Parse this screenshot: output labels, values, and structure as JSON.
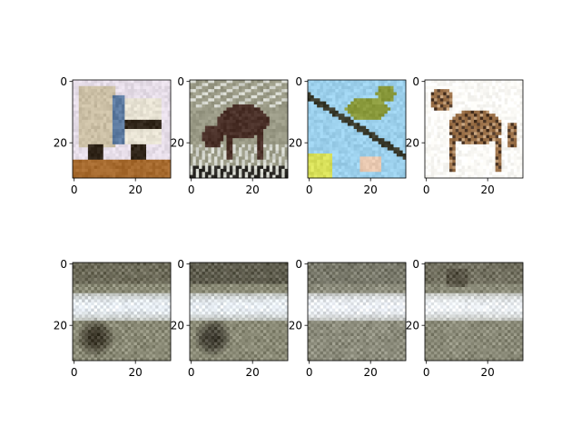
{
  "figure": {
    "background": "#ffffff",
    "rows": 2,
    "cols": 4
  },
  "chart_data": [
    {
      "type": "heatmap",
      "row": 0,
      "col": 0,
      "content": "truck (original image)",
      "xlim": [
        0,
        31
      ],
      "ylim": [
        31,
        0
      ],
      "xticks": [
        "0",
        "20"
      ],
      "yticks": [
        "0",
        "20"
      ],
      "palette": {
        "sky": "#e6dde8",
        "truck": "#cbbfa5",
        "cab": "#e8e3d4",
        "dark": "#2f2418",
        "ground": "#a66a2e",
        "blue": "#5c7aa0"
      }
    },
    {
      "type": "heatmap",
      "row": 0,
      "col": 1,
      "content": "deer (original image)",
      "xlim": [
        0,
        31
      ],
      "ylim": [
        31,
        0
      ],
      "xticks": [
        "0",
        "20"
      ],
      "yticks": [
        "0",
        "20"
      ],
      "palette": {
        "rock": "#9a9a86",
        "light": "#d6d8d0",
        "deer": "#4a3028",
        "dark": "#2a2824"
      }
    },
    {
      "type": "heatmap",
      "row": 0,
      "col": 2,
      "content": "bird (original image)",
      "xlim": [
        0,
        31
      ],
      "ylim": [
        31,
        0
      ],
      "xticks": [
        "0",
        "20"
      ],
      "yticks": [
        "0",
        "20"
      ],
      "palette": {
        "sky": "#9cd0ec",
        "bird": "#8a9a3c",
        "branch": "#3a3a2c",
        "leaf": "#d8e05a",
        "flower": "#e8c8b0"
      }
    },
    {
      "type": "heatmap",
      "row": 0,
      "col": 3,
      "content": "cat (original image)",
      "xlim": [
        0,
        31
      ],
      "ylim": [
        31,
        0
      ],
      "xticks": [
        "0",
        "20"
      ],
      "yticks": [
        "0",
        "20"
      ],
      "palette": {
        "bg": "#fbfaf6",
        "fur": "#9a7048",
        "dark": "#4a3424",
        "light": "#c4a07a"
      }
    },
    {
      "type": "heatmap",
      "row": 1,
      "col": 0,
      "content": "reconstruction",
      "xlim": [
        0,
        31
      ],
      "ylim": [
        31,
        0
      ],
      "xticks": [
        "0",
        "20"
      ],
      "yticks": [
        "0",
        "20"
      ],
      "palette": {
        "base": "#8a8a76",
        "bright": "#e8eef4",
        "dark": "#2a2418"
      }
    },
    {
      "type": "heatmap",
      "row": 1,
      "col": 1,
      "content": "reconstruction",
      "xlim": [
        0,
        31
      ],
      "ylim": [
        31,
        0
      ],
      "xticks": [
        "0",
        "20"
      ],
      "yticks": [
        "0",
        "20"
      ],
      "palette": {
        "base": "#8a8a76",
        "bright": "#e8eef4",
        "dark": "#2c2820"
      }
    },
    {
      "type": "heatmap",
      "row": 1,
      "col": 2,
      "content": "reconstruction",
      "xlim": [
        0,
        31
      ],
      "ylim": [
        31,
        0
      ],
      "xticks": [
        "0",
        "20"
      ],
      "yticks": [
        "0",
        "20"
      ],
      "palette": {
        "base": "#8c8c7c",
        "bright": "#eef2f8",
        "dark": "#4a4a40"
      }
    },
    {
      "type": "heatmap",
      "row": 1,
      "col": 3,
      "content": "reconstruction",
      "xlim": [
        0,
        31
      ],
      "ylim": [
        31,
        0
      ],
      "xticks": [
        "0",
        "20"
      ],
      "yticks": [
        "0",
        "20"
      ],
      "palette": {
        "base": "#8a8a78",
        "bright": "#eef2f6",
        "dark": "#3a3428"
      }
    }
  ]
}
